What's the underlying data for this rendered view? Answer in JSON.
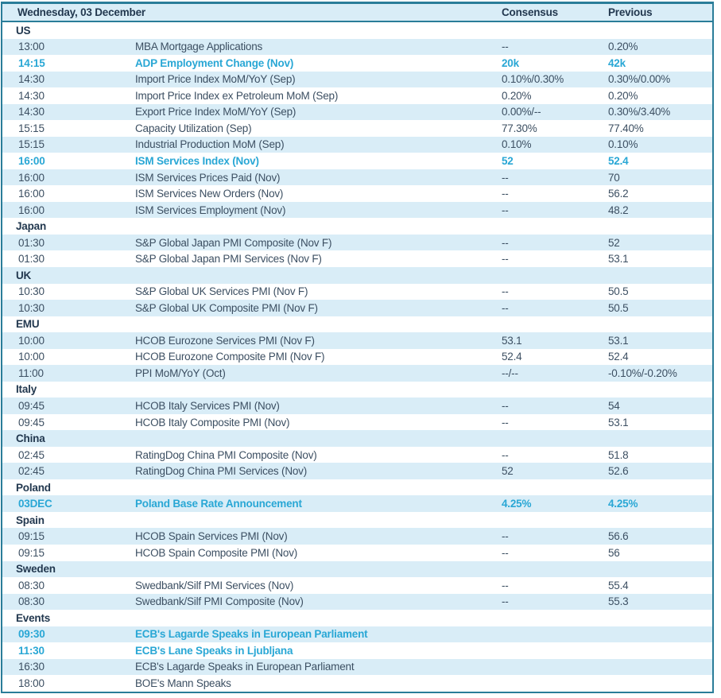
{
  "colors": {
    "border_teal": "#2A7D99",
    "stripe_blue": "#D9EDF7",
    "heading_navy": "#22384F",
    "text_slate": "#3C4F62",
    "highlight_cyan": "#29A7D5",
    "page_background": "#FFFFFF"
  },
  "table": {
    "header": {
      "date_label": "Wednesday, 03 December",
      "consensus_label": "Consensus",
      "previous_label": "Previous"
    },
    "sections": [
      {
        "name": "US",
        "rows": [
          {
            "time": "13:00",
            "event": "MBA Mortgage Applications",
            "consensus": "--",
            "previous": "0.20%",
            "highlight": false
          },
          {
            "time": "14:15",
            "event": "ADP Employment Change (Nov)",
            "consensus": "20k",
            "previous": "42k",
            "highlight": true
          },
          {
            "time": "14:30",
            "event": "Import Price Index MoM/YoY (Sep)",
            "consensus": "0.10%/0.30%",
            "previous": "0.30%/0.00%",
            "highlight": false
          },
          {
            "time": "14:30",
            "event": "Import Price Index ex Petroleum MoM (Sep)",
            "consensus": "0.20%",
            "previous": "0.20%",
            "highlight": false
          },
          {
            "time": "14:30",
            "event": "Export Price Index MoM/YoY (Sep)",
            "consensus": "0.00%/--",
            "previous": "0.30%/3.40%",
            "highlight": false
          },
          {
            "time": "15:15",
            "event": "Capacity Utilization (Sep)",
            "consensus": "77.30%",
            "previous": "77.40%",
            "highlight": false
          },
          {
            "time": "15:15",
            "event": "Industrial Production MoM (Sep)",
            "consensus": "0.10%",
            "previous": "0.10%",
            "highlight": false
          },
          {
            "time": "16:00",
            "event": "ISM Services Index (Nov)",
            "consensus": "52",
            "previous": "52.4",
            "highlight": true
          },
          {
            "time": "16:00",
            "event": "ISM Services Prices Paid (Nov)",
            "consensus": "--",
            "previous": "70",
            "highlight": false
          },
          {
            "time": "16:00",
            "event": "ISM Services New Orders (Nov)",
            "consensus": "--",
            "previous": "56.2",
            "highlight": false
          },
          {
            "time": "16:00",
            "event": "ISM Services Employment (Nov)",
            "consensus": "--",
            "previous": "48.2",
            "highlight": false
          }
        ]
      },
      {
        "name": "Japan",
        "rows": [
          {
            "time": "01:30",
            "event": "S&P Global Japan PMI Composite (Nov F)",
            "consensus": "--",
            "previous": "52",
            "highlight": false
          },
          {
            "time": "01:30",
            "event": "S&P Global Japan PMI Services (Nov F)",
            "consensus": "--",
            "previous": "53.1",
            "highlight": false
          }
        ]
      },
      {
        "name": "UK",
        "rows": [
          {
            "time": "10:30",
            "event": "S&P Global UK Services PMI (Nov F)",
            "consensus": "--",
            "previous": "50.5",
            "highlight": false
          },
          {
            "time": "10:30",
            "event": "S&P Global UK Composite PMI (Nov F)",
            "consensus": "--",
            "previous": "50.5",
            "highlight": false
          }
        ]
      },
      {
        "name": "EMU",
        "rows": [
          {
            "time": "10:00",
            "event": "HCOB Eurozone Services PMI (Nov F)",
            "consensus": "53.1",
            "previous": "53.1",
            "highlight": false
          },
          {
            "time": "10:00",
            "event": "HCOB Eurozone Composite PMI (Nov F)",
            "consensus": "52.4",
            "previous": "52.4",
            "highlight": false
          },
          {
            "time": "11:00",
            "event": "PPI MoM/YoY (Oct)",
            "consensus": "--/--",
            "previous": "-0.10%/-0.20%",
            "highlight": false
          }
        ]
      },
      {
        "name": "Italy",
        "rows": [
          {
            "time": "09:45",
            "event": "HCOB Italy Services PMI (Nov)",
            "consensus": "--",
            "previous": "54",
            "highlight": false
          },
          {
            "time": "09:45",
            "event": "HCOB Italy Composite PMI (Nov)",
            "consensus": "--",
            "previous": "53.1",
            "highlight": false
          }
        ]
      },
      {
        "name": "China",
        "rows": [
          {
            "time": "02:45",
            "event": "RatingDog China PMI Composite (Nov)",
            "consensus": "--",
            "previous": "51.8",
            "highlight": false
          },
          {
            "time": "02:45",
            "event": "RatingDog China PMI Services (Nov)",
            "consensus": "52",
            "previous": "52.6",
            "highlight": false
          }
        ]
      },
      {
        "name": "Poland",
        "rows": [
          {
            "time": "03DEC",
            "event": "Poland Base Rate Announcement",
            "consensus": "4.25%",
            "previous": "4.25%",
            "highlight": true
          }
        ]
      },
      {
        "name": "Spain",
        "rows": [
          {
            "time": "09:15",
            "event": "HCOB Spain Services PMI (Nov)",
            "consensus": "--",
            "previous": "56.6",
            "highlight": false
          },
          {
            "time": "09:15",
            "event": "HCOB Spain Composite PMI (Nov)",
            "consensus": "--",
            "previous": "56",
            "highlight": false
          }
        ]
      },
      {
        "name": "Sweden",
        "rows": [
          {
            "time": "08:30",
            "event": "Swedbank/Silf PMI Services (Nov)",
            "consensus": "--",
            "previous": "55.4",
            "highlight": false
          },
          {
            "time": "08:30",
            "event": "Swedbank/Silf PMI Composite (Nov)",
            "consensus": "--",
            "previous": "55.3",
            "highlight": false
          }
        ]
      },
      {
        "name": "Events",
        "rows": [
          {
            "time": "09:30",
            "event": "ECB's Lagarde Speaks in European Parliament",
            "consensus": "",
            "previous": "",
            "highlight": true
          },
          {
            "time": "11:30",
            "event": "ECB's Lane Speaks in Ljubljana",
            "consensus": "",
            "previous": "",
            "highlight": true
          },
          {
            "time": "16:30",
            "event": "ECB's Lagarde Speaks in European Parliament",
            "consensus": "",
            "previous": "",
            "highlight": false
          },
          {
            "time": "18:00",
            "event": "BOE's Mann Speaks",
            "consensus": "",
            "previous": "",
            "highlight": false
          }
        ]
      }
    ]
  }
}
